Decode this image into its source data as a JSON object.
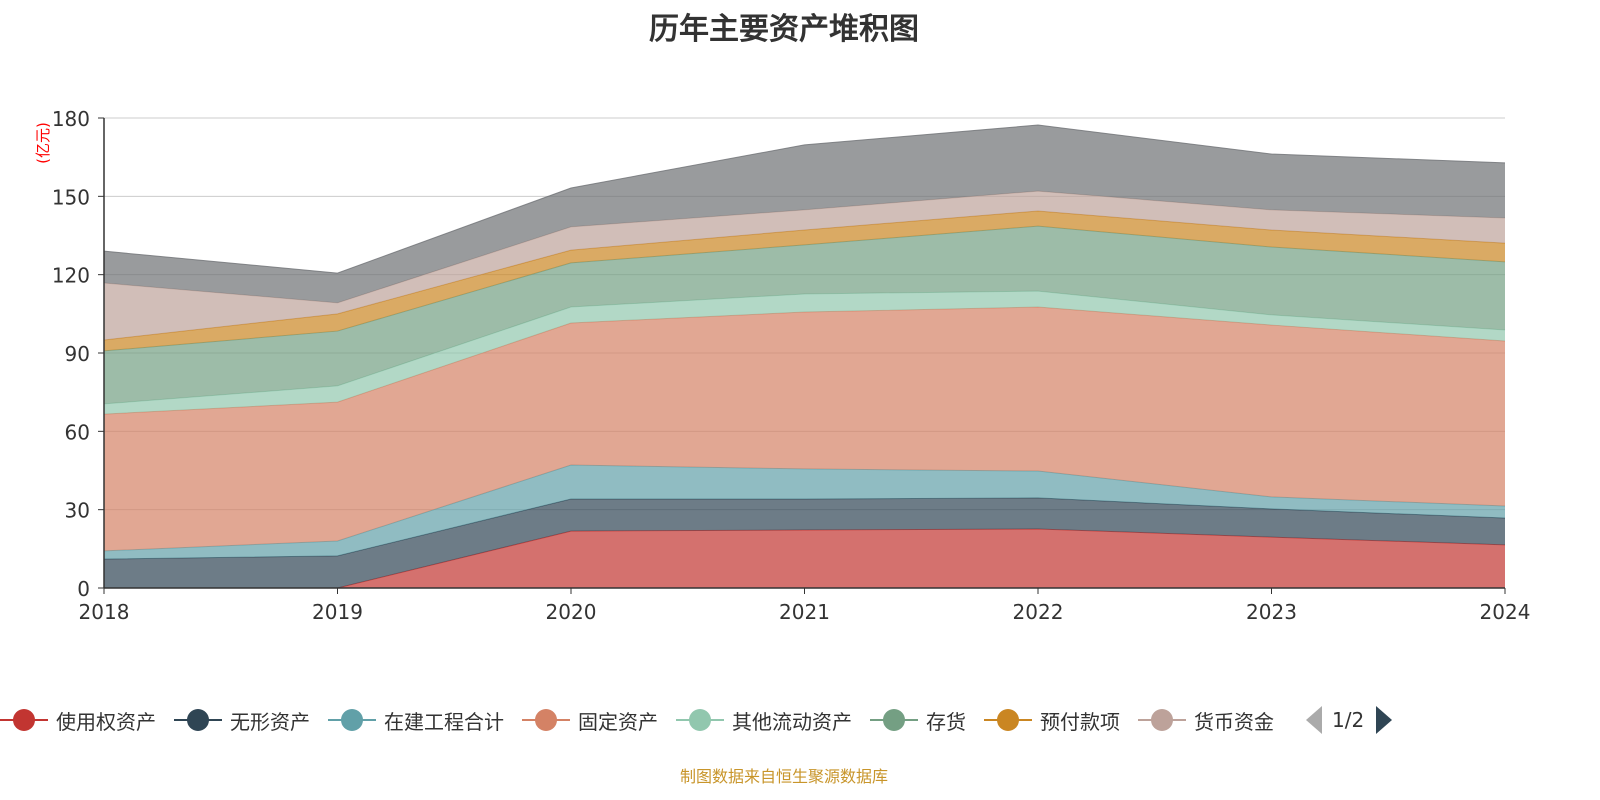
{
  "title": "历年主要资产堆积图",
  "source": "制图数据来自恒生聚源数据库",
  "legend_page": "1/2",
  "chart_data": {
    "type": "area",
    "stacked": true,
    "title": "历年主要资产堆积图",
    "ylabel": "(亿元)",
    "ylim": [
      0,
      180
    ],
    "yticks": [
      "0",
      "30",
      "60",
      "90",
      "120",
      "150",
      "180"
    ],
    "categories": [
      "2018",
      "2019",
      "2020",
      "2021",
      "2022",
      "2023",
      "2024"
    ],
    "grid": true,
    "legend_position": "bottom",
    "series": [
      {
        "name": "使用权资产",
        "color": "#c23531",
        "values": [
          0,
          0,
          21.8,
          22.2,
          22.6,
          19.5,
          16.5
        ]
      },
      {
        "name": "无形资产",
        "color": "#2f4554",
        "values": [
          11.1,
          12.3,
          12.3,
          11.9,
          11.9,
          10.8,
          10.3
        ]
      },
      {
        "name": "在建工程合计",
        "color": "#61a0a8",
        "values": [
          3.1,
          5.7,
          13.0,
          11.5,
          10.3,
          4.6,
          4.6
        ]
      },
      {
        "name": "固定资产",
        "color": "#d48265",
        "values": [
          52.4,
          53.2,
          54.4,
          60.1,
          62.8,
          65.8,
          63.2
        ]
      },
      {
        "name": "其他流动资产",
        "color": "#91c7ae",
        "values": [
          3.9,
          6.2,
          6.1,
          6.9,
          6.1,
          3.9,
          4.2
        ]
      },
      {
        "name": "存货",
        "color": "#749f83",
        "values": [
          20.3,
          21.0,
          16.9,
          18.8,
          24.9,
          26.0,
          26.1
        ]
      },
      {
        "name": "预付款项",
        "color": "#ca8622",
        "values": [
          4.2,
          6.6,
          4.9,
          5.7,
          5.8,
          6.5,
          7.2
        ]
      },
      {
        "name": "货币资金",
        "color": "#bda29a",
        "values": [
          21.8,
          4.2,
          8.9,
          7.7,
          7.6,
          7.7,
          9.6
        ]
      },
      {
        "color": "#6e7074",
        "values": [
          12.2,
          11.4,
          14.9,
          24.9,
          25.3,
          21.4,
          21.1
        ]
      }
    ]
  }
}
